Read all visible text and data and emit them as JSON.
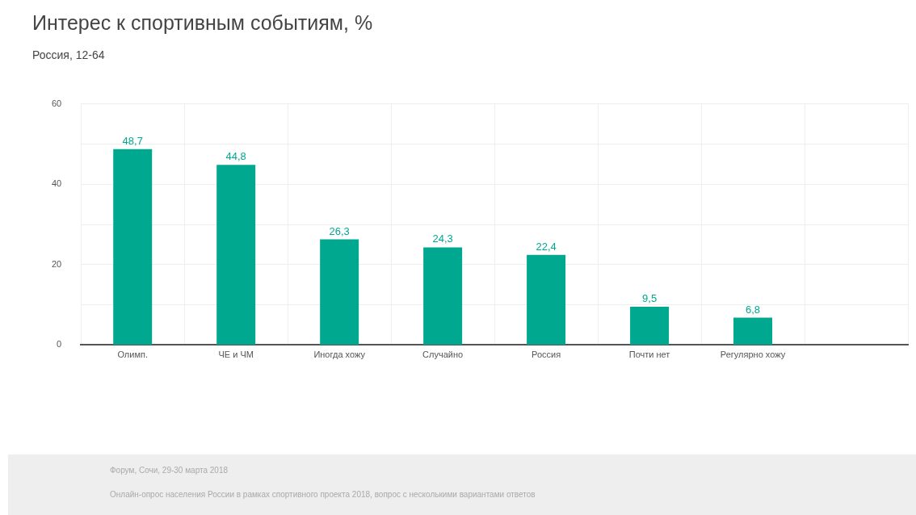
{
  "chart_data": {
    "type": "bar",
    "title": "Интерес к спортивным событиям, %",
    "subtitle": "Россия, 12-64",
    "categories": [
      "Олимп.",
      "ЧЕ и ЧМ",
      "Иногда хожу",
      "Случайно",
      "Россия",
      "Почти нет",
      "Регулярно хожу",
      null
    ],
    "values": [
      48.7,
      44.8,
      26.3,
      24.3,
      22.4,
      9.5,
      6.8,
      null
    ],
    "value_labels": [
      "48,7",
      "44,8",
      "26,3",
      "24,3",
      "22,4",
      "9,5",
      "6,8",
      null
    ],
    "color": "#00a88f",
    "ylim": [
      0,
      60
    ],
    "yticks": [
      0,
      {
        "value": 10,
        "label": null
      },
      20,
      {
        "value": 30,
        "label": null
      },
      40,
      {
        "value": 50,
        "label": null
      },
      60
    ],
    "grid": true,
    "legend": false,
    "annotations": [
      "Форум, Сочи, 29-30 марта 2018",
      "Онлайн-опрос населения России в рамках спортивного проекта 2018, вопрос с несколькими вариантами ответов"
    ]
  }
}
